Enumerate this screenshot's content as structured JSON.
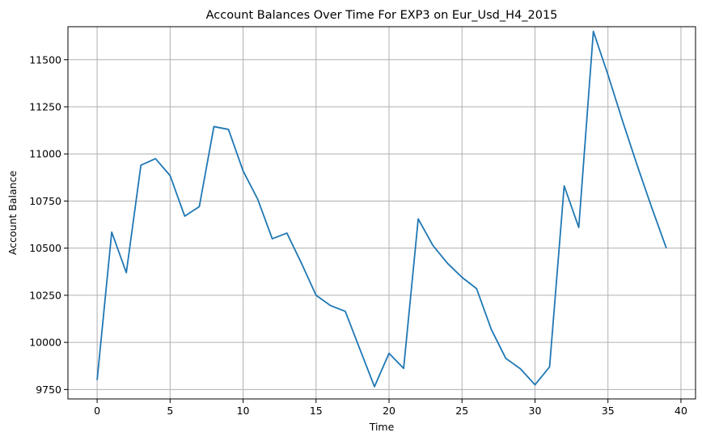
{
  "chart_data": {
    "type": "line",
    "title": "Account Balances Over Time For EXP3 on Eur_Usd_H4_2015",
    "xlabel": "Time",
    "ylabel": "Account Balance",
    "xlim": [
      -2,
      41
    ],
    "ylim": [
      9700,
      11675
    ],
    "xticks": [
      0,
      5,
      10,
      15,
      20,
      25,
      30,
      35,
      40
    ],
    "yticks": [
      9750,
      10000,
      10250,
      10500,
      10750,
      11000,
      11250,
      11500
    ],
    "grid": true,
    "line_color": "#1f77b4",
    "series": [
      {
        "x": [
          0,
          1,
          2,
          3,
          4,
          5,
          6,
          7,
          8,
          9,
          10,
          11,
          12,
          13,
          14,
          15,
          16,
          17,
          18,
          19,
          20,
          21,
          22,
          23,
          24,
          25,
          26,
          27,
          28,
          29,
          30,
          31,
          32,
          33,
          34,
          35,
          36,
          37,
          38,
          39
        ],
        "y": [
          9800,
          10585,
          10370,
          10940,
          10975,
          10885,
          10670,
          10720,
          11145,
          11130,
          10910,
          10760,
          10550,
          10580,
          10420,
          10250,
          10195,
          10165,
          9965,
          9765,
          9942,
          9862,
          10655,
          10515,
          10420,
          10345,
          10285,
          10070,
          9915,
          9860,
          9775,
          9870,
          10830,
          10610,
          11650,
          11420,
          11175,
          10940,
          10715,
          10500
        ]
      }
    ]
  }
}
